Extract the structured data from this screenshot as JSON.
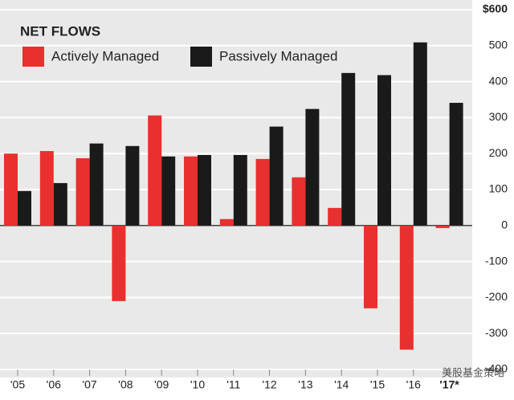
{
  "chart_data": {
    "type": "bar",
    "title": "NET FLOWS",
    "categories": [
      "'05",
      "'06",
      "'07",
      "'08",
      "'09",
      "'10",
      "'11",
      "'12",
      "'13",
      "'14",
      "'15",
      "'16",
      "'17*"
    ],
    "series": [
      {
        "name": "Actively Managed",
        "color": "#e8302e",
        "values": [
          200,
          207,
          187,
          -210,
          306,
          192,
          18,
          185,
          134,
          49,
          -230,
          -345,
          -7
        ]
      },
      {
        "name": "Passively Managed",
        "color": "#1a1a1a",
        "values": [
          96,
          118,
          228,
          221,
          192,
          196,
          196,
          275,
          324,
          424,
          418,
          509,
          341
        ]
      }
    ],
    "ylim": [
      -400,
      600
    ],
    "yticks": [
      -400,
      -300,
      -200,
      -100,
      0,
      100,
      200,
      300,
      400,
      500,
      {
        "value": 600,
        "label": "$600"
      }
    ],
    "grid": true,
    "watermark": "美股基金策略"
  }
}
